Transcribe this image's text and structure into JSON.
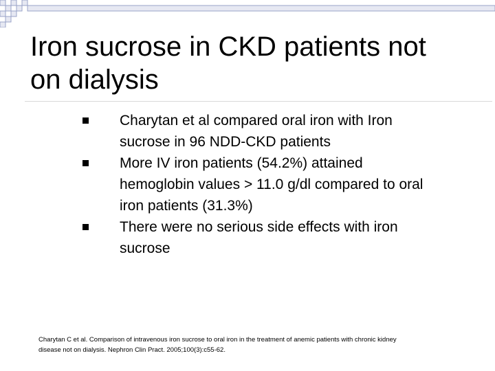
{
  "slide": {
    "title_lines": [
      "Iron sucrose in CKD patients not",
      "on dialysis"
    ],
    "bullets": [
      {
        "lines": [
          "Charytan et al compared oral iron with Iron",
          "sucrose in 96 NDD-CKD patients"
        ]
      },
      {
        "lines": [
          "More IV iron patients (54.2%) attained",
          "hemoglobin values > 11.0 g/dl compared to oral",
          "iron patients (31.3%)"
        ]
      },
      {
        "lines": [
          "There were no serious side effects with iron",
          "sucrose"
        ]
      }
    ],
    "reference_lines": [
      "Charytan C et al. Comparison of intravenous iron sucrose to oral iron in the treatment of anemic patients with chronic kidney",
      "disease not on dialysis. Nephron Clin Pract. 2005;100(3):c55-62."
    ]
  },
  "colors": {
    "decoration_border": "#9aa3c8",
    "decoration_fill": "#e6e8f2",
    "title_rule": "#d9d9d9",
    "text": "#000000",
    "background": "#ffffff"
  }
}
